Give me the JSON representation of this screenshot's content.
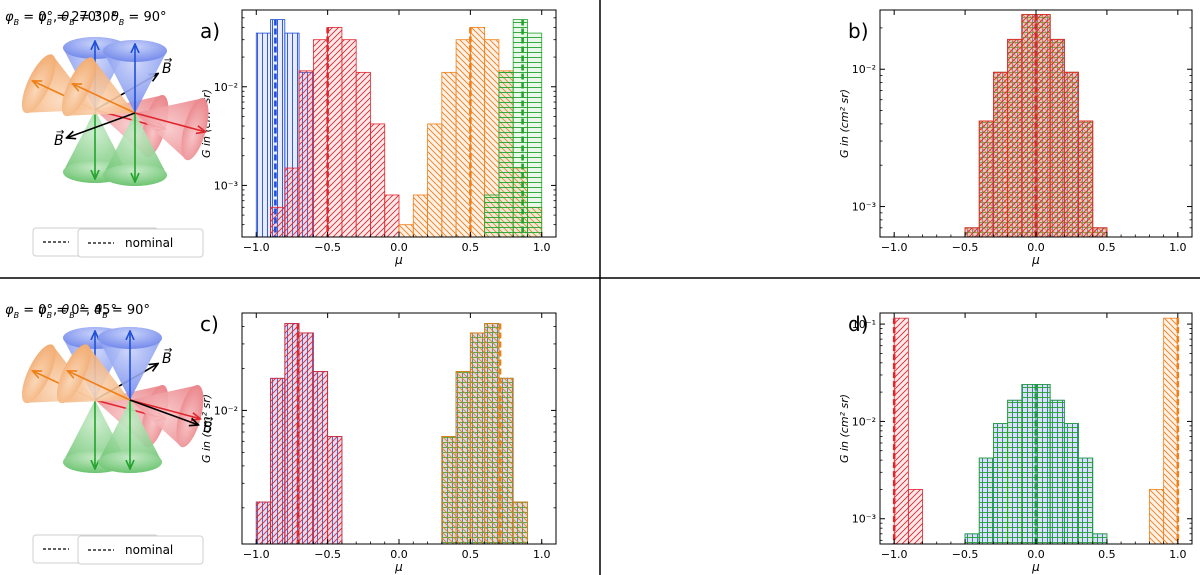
{
  "figure": {
    "nominal_label": "nominal",
    "b_label": "B",
    "colors": {
      "blue": "#1f4fd8",
      "orange": "#f07f17",
      "red": "#e0262d",
      "green": "#22a32c",
      "blue_fill": "#7f97ee",
      "orange_fill": "#f3b47e",
      "red_fill": "#ee8b8f",
      "green_fill": "#8bd48e",
      "divider": "#000000"
    }
  },
  "chart_data": [
    {
      "panel": "a)",
      "type": "bar",
      "scale": "log",
      "title_phi": "0°",
      "title_theta": "30°",
      "xlabel": "μ",
      "ylabel_main": "G in ",
      "ylabel_unit": "(cm² sr)",
      "xlim": [
        -1.1,
        1.1
      ],
      "ylim": [
        0.0003,
        0.06
      ],
      "xticks": [
        -1.0,
        -0.5,
        0.0,
        0.5,
        1.0
      ],
      "xtick_labels": [
        "−1.0",
        "−0.5",
        "0.0",
        "0.5",
        "1.0"
      ],
      "yticks": [
        0.001,
        0.01
      ],
      "ytick_labels": [
        "10⁻³",
        "10⁻²"
      ],
      "bin_edges": [
        -1.0,
        -0.9,
        -0.8,
        -0.7,
        -0.6,
        -0.5,
        -0.4,
        -0.3,
        -0.2,
        -0.1,
        0.0,
        0.1,
        0.2,
        0.3,
        0.4,
        0.5,
        0.6,
        0.7,
        0.8,
        0.9,
        1.0
      ],
      "series": [
        {
          "name": "blue",
          "hatch": "vertical",
          "values": [
            0.035,
            0.048,
            0.035,
            0.014,
            0,
            0,
            0,
            0,
            0,
            0,
            0,
            0,
            0,
            0,
            0,
            0,
            0,
            0,
            0,
            0
          ],
          "nominal": -0.866
        },
        {
          "name": "red",
          "hatch": "forward",
          "values": [
            0,
            0.0006,
            0.0015,
            0.0145,
            0.03,
            0.04,
            0.03,
            0.014,
            0.0042,
            0.0008,
            0,
            0,
            0,
            0,
            0,
            0,
            0,
            0,
            0,
            0
          ],
          "nominal": -0.5
        },
        {
          "name": "orange",
          "hatch": "backward",
          "values": [
            0,
            0,
            0,
            0,
            0,
            0,
            0,
            0,
            0,
            0,
            0.0004,
            0.0008,
            0.0042,
            0.014,
            0.03,
            0.04,
            0.03,
            0.0145,
            0.0015,
            0.0006
          ],
          "nominal": 0.5
        },
        {
          "name": "green",
          "hatch": "horizontal",
          "values": [
            0,
            0,
            0,
            0,
            0,
            0,
            0,
            0,
            0,
            0,
            0,
            0,
            0,
            0,
            0,
            0,
            0.0008,
            0.014,
            0.048,
            0.035
          ],
          "nominal": 0.866
        }
      ]
    },
    {
      "panel": "b)",
      "type": "bar",
      "scale": "log",
      "title_phi": "270°",
      "title_theta": "90°",
      "xlabel": "μ",
      "ylabel_main": "G in ",
      "ylabel_unit": "(cm² sr)",
      "xlim": [
        -1.1,
        1.1
      ],
      "ylim": [
        0.0006,
        0.027
      ],
      "xticks": [
        -1.0,
        -0.5,
        0.0,
        0.5,
        1.0
      ],
      "xtick_labels": [
        "−1.0",
        "−0.5",
        "0.0",
        "0.5",
        "1.0"
      ],
      "yticks": [
        0.001,
        0.01
      ],
      "ytick_labels": [
        "10⁻³",
        "10⁻²"
      ],
      "bin_edges": [
        -0.5,
        -0.4,
        -0.3,
        -0.2,
        -0.1,
        0.0,
        0.1,
        0.2,
        0.3,
        0.4,
        0.5
      ],
      "series": [
        {
          "name": "blue",
          "hatch": "vertical",
          "values": [
            0.0007,
            0.0042,
            0.0095,
            0.0165,
            0.025,
            0.025,
            0.0165,
            0.0095,
            0.0042,
            0.0007
          ],
          "nominal": 0.0
        },
        {
          "name": "green",
          "hatch": "horizontal",
          "values": [
            0.0007,
            0.0042,
            0.0095,
            0.0165,
            0.025,
            0.025,
            0.0165,
            0.0095,
            0.0042,
            0.0007
          ],
          "nominal": 0.0
        },
        {
          "name": "orange",
          "hatch": "backward",
          "values": [
            0.0007,
            0.0042,
            0.0095,
            0.0165,
            0.025,
            0.025,
            0.0165,
            0.0095,
            0.0042,
            0.0007
          ],
          "nominal": 0.0
        },
        {
          "name": "red",
          "hatch": "forward",
          "values": [
            0.0007,
            0.0042,
            0.0095,
            0.0165,
            0.025,
            0.025,
            0.0165,
            0.0095,
            0.0042,
            0.0007
          ],
          "nominal": 0.0
        }
      ]
    },
    {
      "panel": "c)",
      "type": "bar",
      "scale": "log",
      "title_phi": "0°",
      "title_theta": "45°",
      "xlabel": "μ",
      "ylabel_main": "G in ",
      "ylabel_unit": "(cm² sr)",
      "xlim": [
        -1.1,
        1.1
      ],
      "ylim": [
        0.0011,
        0.05
      ],
      "xticks": [
        -1.0,
        -0.5,
        0.0,
        0.5,
        1.0
      ],
      "xtick_labels": [
        "−1.0",
        "−0.5",
        "0.0",
        "0.5",
        "1.0"
      ],
      "yticks": [
        0.01
      ],
      "ytick_labels": [
        "10⁻²"
      ],
      "bin_edges": [
        -1.0,
        -0.9,
        -0.8,
        -0.7,
        -0.6,
        -0.5,
        -0.4,
        0.3,
        0.4,
        0.5,
        0.6,
        0.7,
        0.8,
        0.9,
        1.0
      ],
      "series": [
        {
          "name": "blue",
          "hatch": "vertical",
          "values": [
            0.0022,
            0.017,
            0.042,
            0.036,
            0.019,
            0.0065,
            0,
            0.0065,
            0.019,
            0.036,
            0.042,
            0.017,
            0.0022
          ],
          "nominal": -0.707
        },
        {
          "name": "red",
          "hatch": "forward",
          "values": [
            0.0022,
            0.017,
            0.042,
            0.036,
            0.019,
            0.0065,
            0,
            0,
            0,
            0,
            0,
            0,
            0
          ],
          "nominal": -0.707
        },
        {
          "name": "green",
          "hatch": "horizontal",
          "values": [
            0,
            0,
            0,
            0,
            0,
            0,
            0,
            0.0065,
            0.019,
            0.036,
            0.042,
            0.017,
            0.0022
          ],
          "nominal": 0.707
        },
        {
          "name": "orange",
          "hatch": "backward",
          "values": [
            0,
            0,
            0,
            0,
            0,
            0,
            0,
            0.0065,
            0.019,
            0.036,
            0.042,
            0.017,
            0.0022
          ],
          "nominal": 0.707
        }
      ]
    },
    {
      "panel": "d)",
      "type": "bar",
      "scale": "log",
      "title_phi": "0°",
      "title_theta": "90°",
      "xlabel": "μ",
      "ylabel_main": "G in ",
      "ylabel_unit": "(cm² sr)",
      "xlim": [
        -1.1,
        1.1
      ],
      "ylim": [
        0.00055,
        0.13
      ],
      "xticks": [
        -1.0,
        -0.5,
        0.0,
        0.5,
        1.0
      ],
      "xtick_labels": [
        "−1.0",
        "−0.5",
        "0.0",
        "0.5",
        "1.0"
      ],
      "yticks": [
        0.001,
        0.01,
        0.1
      ],
      "ytick_labels": [
        "10⁻³",
        "10⁻²",
        "10⁻¹"
      ],
      "bin_edges": [
        -1.0,
        -0.9,
        -0.8,
        -0.5,
        -0.4,
        -0.3,
        -0.2,
        -0.1,
        0.0,
        0.1,
        0.2,
        0.3,
        0.4,
        0.5,
        0.8,
        0.9,
        1.0
      ],
      "series": [
        {
          "name": "red",
          "hatch": "forward",
          "values": [
            0.115,
            0.002,
            0,
            0,
            0,
            0,
            0,
            0,
            0,
            0,
            0,
            0,
            0,
            0,
            0,
            0
          ],
          "nominal": -1.0
        },
        {
          "name": "orange",
          "hatch": "backward",
          "values": [
            0,
            0,
            0,
            0,
            0,
            0,
            0,
            0,
            0,
            0,
            0,
            0,
            0,
            0,
            0.002,
            0.115
          ],
          "nominal": 1.0
        },
        {
          "name": "blue",
          "hatch": "vertical",
          "values": [
            0,
            0,
            0,
            0.0007,
            0.0042,
            0.0095,
            0.0165,
            0.024,
            0.024,
            0.0165,
            0.0095,
            0.0042,
            0.0007,
            0,
            0,
            0
          ],
          "nominal": 0.0
        },
        {
          "name": "green",
          "hatch": "horizontal",
          "values": [
            0,
            0,
            0,
            0.0007,
            0.0042,
            0.0095,
            0.0165,
            0.024,
            0.024,
            0.0165,
            0.0095,
            0.0042,
            0.0007,
            0,
            0,
            0
          ],
          "nominal": 0.0
        }
      ]
    }
  ]
}
